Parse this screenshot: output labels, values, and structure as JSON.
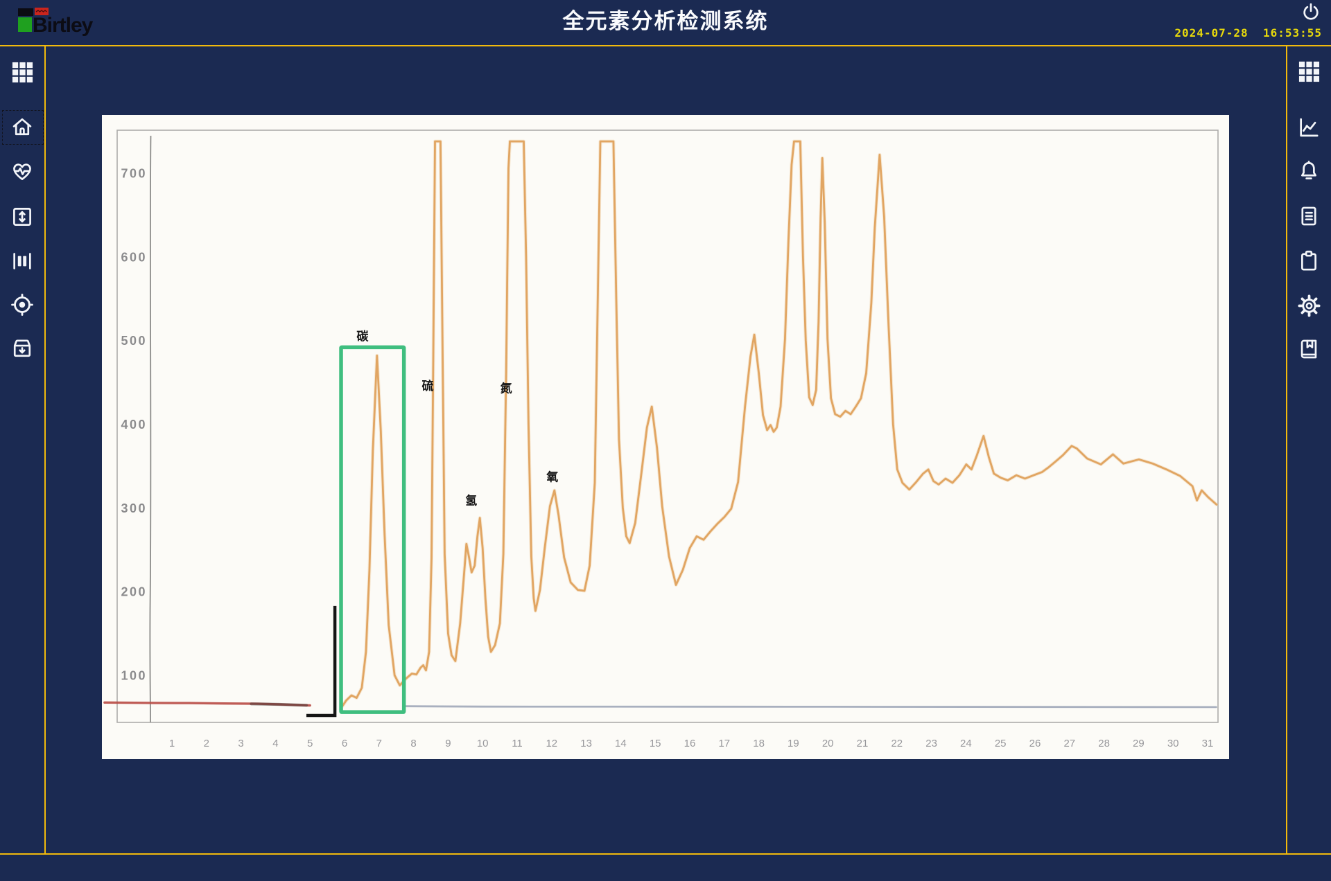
{
  "app": {
    "brand": "Birtley",
    "title": "全元素分析检测系统",
    "datetime": "2024-07-28  16:53:55"
  },
  "colors": {
    "background": "#1b2a52",
    "accent_line": "#f2ba0c",
    "datetime_text": "#e9da0b",
    "icon": "#f3f5f9",
    "panel": "#fcfbf7",
    "logo_black": "#0b0b12",
    "logo_red": "#c9251d",
    "logo_green": "#1fa01f"
  },
  "sidebar_left": {
    "items": [
      {
        "id": "apps",
        "icon": "grid-icon"
      },
      {
        "id": "home",
        "icon": "home-icon",
        "focused": true
      },
      {
        "id": "monitor",
        "icon": "heart-pulse-icon"
      },
      {
        "id": "range",
        "icon": "vertical-arrows-box-icon"
      },
      {
        "id": "barcode",
        "icon": "barcode-icon"
      },
      {
        "id": "calibration",
        "icon": "target-icon"
      },
      {
        "id": "archive",
        "icon": "archive-box-icon"
      }
    ]
  },
  "sidebar_right": {
    "items": [
      {
        "id": "apps",
        "icon": "grid-icon"
      },
      {
        "id": "trend",
        "icon": "line-chart-icon"
      },
      {
        "id": "alarms",
        "icon": "bell-icon"
      },
      {
        "id": "report",
        "icon": "document-icon"
      },
      {
        "id": "tasks",
        "icon": "clipboard-icon"
      },
      {
        "id": "settings",
        "icon": "gear-icon"
      },
      {
        "id": "records",
        "icon": "book-icon"
      }
    ]
  },
  "chart_data": {
    "type": "line",
    "title": "",
    "xlabel": "",
    "ylabel": "",
    "grid": false,
    "x_ticks": [
      1,
      2,
      3,
      4,
      5,
      6,
      7,
      8,
      9,
      10,
      11,
      12,
      13,
      14,
      15,
      16,
      17,
      18,
      19,
      20,
      21,
      22,
      23,
      24,
      25,
      26,
      27,
      28,
      29,
      30,
      31
    ],
    "y_ticks": [
      100,
      200,
      300,
      400,
      500,
      600,
      700
    ],
    "xlim": [
      0,
      31.5
    ],
    "ylim": [
      0,
      760
    ],
    "clip_value": 738,
    "element_labels": [
      {
        "text": "碳",
        "u": 6.52,
        "v": 505
      },
      {
        "text": "硫",
        "u": 8.41,
        "v": 446
      },
      {
        "text": "氢",
        "u": 9.67,
        "v": 309
      },
      {
        "text": "氮",
        "u": 10.68,
        "v": 443
      },
      {
        "text": "氧",
        "u": 12.02,
        "v": 337
      }
    ],
    "highlight_box": {
      "label": "碳",
      "u1": 5.9,
      "u2": 7.72,
      "v1": 56,
      "v2": 492,
      "color": "#3fbe7f"
    },
    "bracket": {
      "color": "#151515",
      "points": [
        [
          4.94,
          52
        ],
        [
          5.72,
          52
        ],
        [
          5.72,
          181
        ]
      ]
    },
    "series": [
      {
        "name": "baseline-pre",
        "color": "#b84a44",
        "width": 3.4,
        "opacity": 0.9,
        "points": [
          [
            -0.95,
            67.5
          ],
          [
            0.5,
            67
          ],
          [
            1.5,
            66.8
          ],
          [
            2.5,
            66.3
          ],
          [
            3.5,
            66
          ],
          [
            4.3,
            65
          ],
          [
            5.0,
            64
          ]
        ]
      },
      {
        "name": "baseline-smear",
        "color": "#3d3332",
        "width": 4.2,
        "opacity": 0.5,
        "points": [
          [
            3.3,
            65.8
          ],
          [
            4.1,
            65.2
          ],
          [
            4.9,
            64.2
          ]
        ]
      },
      {
        "name": "baseline-post",
        "color": "#9aa2b5",
        "width": 2.8,
        "opacity": 0.85,
        "points": [
          [
            7.78,
            63
          ],
          [
            10,
            62.6
          ],
          [
            20,
            62.4
          ],
          [
            31.25,
            62
          ]
        ]
      },
      {
        "name": "signal",
        "color": "#dfa15c",
        "width": 2.8,
        "opacity": 0.95,
        "halo": "#ecc793",
        "points": [
          [
            5.92,
            62
          ],
          [
            6.05,
            70
          ],
          [
            6.2,
            76
          ],
          [
            6.35,
            73
          ],
          [
            6.5,
            85
          ],
          [
            6.62,
            128
          ],
          [
            6.72,
            225
          ],
          [
            6.82,
            368
          ],
          [
            6.94,
            482
          ],
          [
            7.05,
            392
          ],
          [
            7.16,
            268
          ],
          [
            7.28,
            160
          ],
          [
            7.45,
            100
          ],
          [
            7.6,
            88
          ],
          [
            7.78,
            96
          ],
          [
            7.95,
            102
          ],
          [
            8.08,
            101
          ],
          [
            8.2,
            109
          ],
          [
            8.28,
            112
          ],
          [
            8.36,
            106
          ],
          [
            8.45,
            128
          ],
          [
            8.52,
            240
          ],
          [
            8.57,
            480
          ],
          [
            8.62,
            738
          ],
          [
            8.78,
            738
          ],
          [
            8.84,
            490
          ],
          [
            8.9,
            245
          ],
          [
            9.0,
            150
          ],
          [
            9.1,
            124
          ],
          [
            9.21,
            117
          ],
          [
            9.35,
            162
          ],
          [
            9.47,
            225
          ],
          [
            9.53,
            257
          ],
          [
            9.61,
            240
          ],
          [
            9.68,
            223
          ],
          [
            9.77,
            231
          ],
          [
            9.85,
            266
          ],
          [
            9.92,
            288
          ],
          [
            10.0,
            252
          ],
          [
            10.08,
            192
          ],
          [
            10.16,
            146
          ],
          [
            10.24,
            128
          ],
          [
            10.36,
            136
          ],
          [
            10.5,
            162
          ],
          [
            10.6,
            245
          ],
          [
            10.68,
            460
          ],
          [
            10.75,
            706
          ],
          [
            10.79,
            738
          ],
          [
            11.19,
            738
          ],
          [
            11.26,
            600
          ],
          [
            11.33,
            400
          ],
          [
            11.41,
            242
          ],
          [
            11.48,
            192
          ],
          [
            11.53,
            177
          ],
          [
            11.66,
            202
          ],
          [
            11.8,
            252
          ],
          [
            11.95,
            302
          ],
          [
            12.08,
            321
          ],
          [
            12.2,
            291
          ],
          [
            12.36,
            241
          ],
          [
            12.55,
            211
          ],
          [
            12.76,
            202
          ],
          [
            12.95,
            201
          ],
          [
            13.1,
            231
          ],
          [
            13.25,
            330
          ],
          [
            13.34,
            560
          ],
          [
            13.41,
            738
          ],
          [
            13.79,
            738
          ],
          [
            13.87,
            552
          ],
          [
            13.95,
            382
          ],
          [
            14.06,
            300
          ],
          [
            14.16,
            266
          ],
          [
            14.26,
            258
          ],
          [
            14.42,
            282
          ],
          [
            14.6,
            342
          ],
          [
            14.76,
            396
          ],
          [
            14.9,
            421
          ],
          [
            15.05,
            372
          ],
          [
            15.2,
            302
          ],
          [
            15.4,
            242
          ],
          [
            15.6,
            208
          ],
          [
            15.8,
            226
          ],
          [
            16.0,
            252
          ],
          [
            16.2,
            266
          ],
          [
            16.4,
            262
          ],
          [
            16.6,
            272
          ],
          [
            16.8,
            281
          ],
          [
            17.0,
            289
          ],
          [
            17.2,
            299
          ],
          [
            17.4,
            331
          ],
          [
            17.6,
            421
          ],
          [
            17.76,
            481
          ],
          [
            17.87,
            507
          ],
          [
            18.0,
            461
          ],
          [
            18.12,
            411
          ],
          [
            18.24,
            393
          ],
          [
            18.34,
            399
          ],
          [
            18.43,
            391
          ],
          [
            18.52,
            396
          ],
          [
            18.63,
            421
          ],
          [
            18.76,
            502
          ],
          [
            18.86,
            620
          ],
          [
            18.95,
            710
          ],
          [
            19.02,
            738
          ],
          [
            19.2,
            738
          ],
          [
            19.28,
            601
          ],
          [
            19.36,
            500
          ],
          [
            19.46,
            432
          ],
          [
            19.56,
            423
          ],
          [
            19.66,
            441
          ],
          [
            19.73,
            522
          ],
          [
            19.79,
            645
          ],
          [
            19.84,
            718
          ],
          [
            19.91,
            641
          ],
          [
            19.99,
            502
          ],
          [
            20.09,
            431
          ],
          [
            20.21,
            412
          ],
          [
            20.36,
            409
          ],
          [
            20.51,
            416
          ],
          [
            20.66,
            412
          ],
          [
            20.81,
            421
          ],
          [
            20.96,
            431
          ],
          [
            21.11,
            461
          ],
          [
            21.26,
            545
          ],
          [
            21.36,
            635
          ],
          [
            21.5,
            722
          ],
          [
            21.63,
            648
          ],
          [
            21.76,
            518
          ],
          [
            21.89,
            400
          ],
          [
            22.01,
            346
          ],
          [
            22.16,
            330
          ],
          [
            22.36,
            322
          ],
          [
            22.56,
            331
          ],
          [
            22.76,
            341
          ],
          [
            22.91,
            346
          ],
          [
            23.06,
            332
          ],
          [
            23.21,
            328
          ],
          [
            23.41,
            335
          ],
          [
            23.61,
            330
          ],
          [
            23.81,
            339
          ],
          [
            24.01,
            352
          ],
          [
            24.16,
            346
          ],
          [
            24.31,
            362
          ],
          [
            24.51,
            386
          ],
          [
            24.66,
            361
          ],
          [
            24.81,
            341
          ],
          [
            25.01,
            336
          ],
          [
            25.21,
            333
          ],
          [
            25.46,
            339
          ],
          [
            25.71,
            335
          ],
          [
            25.96,
            339
          ],
          [
            26.21,
            343
          ],
          [
            26.41,
            349
          ],
          [
            26.61,
            356
          ],
          [
            26.81,
            363
          ],
          [
            27.06,
            374
          ],
          [
            27.21,
            371
          ],
          [
            27.51,
            359
          ],
          [
            27.91,
            352
          ],
          [
            28.26,
            364
          ],
          [
            28.56,
            353
          ],
          [
            29.01,
            358
          ],
          [
            29.41,
            353
          ],
          [
            29.81,
            346
          ],
          [
            30.21,
            338
          ],
          [
            30.56,
            326
          ],
          [
            30.69,
            309
          ],
          [
            30.83,
            321
          ],
          [
            31.01,
            313
          ],
          [
            31.26,
            304
          ]
        ]
      }
    ]
  }
}
